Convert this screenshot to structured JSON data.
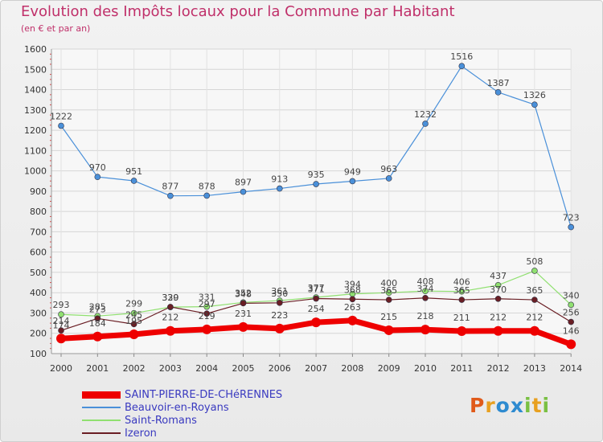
{
  "header": {
    "title": "Evolution des Impôts locaux pour la Commune par Habitant",
    "subtitle": "(en € et par an)"
  },
  "logo": {
    "text": "Proxiti",
    "letters": [
      "P",
      "r",
      "o",
      "x",
      "i",
      "t",
      "i"
    ],
    "colors": [
      "#e05a1a",
      "#e8a020",
      "#2e8bd0",
      "#2e8bd0",
      "#7ac043",
      "#e8a020",
      "#7ac043"
    ]
  },
  "chart_data": {
    "type": "line",
    "title": "Evolution des Impôts locaux pour la Commune par Habitant",
    "subtitle": "(en € et par an)",
    "xlabel": "",
    "ylabel": "",
    "x": [
      2000,
      2001,
      2002,
      2003,
      2004,
      2005,
      2006,
      2007,
      2008,
      2009,
      2010,
      2011,
      2012,
      2013,
      2014
    ],
    "ylim": [
      100,
      1600
    ],
    "yticks": [
      100,
      200,
      300,
      400,
      500,
      600,
      700,
      800,
      900,
      1000,
      1100,
      1200,
      1300,
      1400,
      1500,
      1600
    ],
    "grid": true,
    "legend_position": "bottom-left",
    "series": [
      {
        "name": "SAINT-PIERRE-DE-CHéRENNES",
        "color": "#ee0000",
        "emphasis": true,
        "values": [
          174,
          184,
          195,
          212,
          219,
          231,
          223,
          254,
          263,
          215,
          218,
          211,
          212,
          212,
          146
        ]
      },
      {
        "name": "Beauvoir-en-Royans",
        "color": "#4a90d9",
        "emphasis": false,
        "values": [
          1222,
          970,
          951,
          877,
          878,
          897,
          913,
          935,
          949,
          963,
          1232,
          1516,
          1387,
          1326,
          723
        ]
      },
      {
        "name": "Saint-Romans",
        "color": "#90e070",
        "emphasis": false,
        "values": [
          293,
          285,
          299,
          329,
          331,
          352,
          361,
          377,
          394,
          400,
          408,
          406,
          437,
          508,
          340
        ]
      },
      {
        "name": "Izeron",
        "color": "#6a1e24",
        "emphasis": false,
        "values": [
          214,
          273,
          245,
          330,
          297,
          348,
          350,
          371,
          368,
          365,
          374,
          365,
          370,
          365,
          256
        ]
      }
    ],
    "data_labels": {
      "SAINT-PIERRE-DE-CHéRENNES": [
        "174",
        "184",
        "195",
        "212",
        "219",
        "231",
        "223",
        "254",
        "263",
        "215",
        "218",
        "211",
        "212",
        "212",
        "146"
      ],
      "Beauvoir-en-Royans": [
        "1222",
        "970",
        "951",
        "877",
        "878",
        "897",
        "913",
        "935",
        "949",
        "963",
        "1232",
        "1516",
        "1387",
        "1326",
        "723"
      ],
      "Saint-Romans": [
        "293",
        "285",
        "299",
        "329",
        "331",
        "352",
        "361",
        "377",
        "394",
        "400",
        "408",
        "406",
        "437",
        "508",
        "340"
      ],
      "Izeron": [
        "214",
        "273",
        "245",
        "330",
        "297",
        "348",
        "350",
        "371",
        "368",
        "365",
        "374",
        "365",
        "370",
        "365",
        "256"
      ]
    }
  }
}
